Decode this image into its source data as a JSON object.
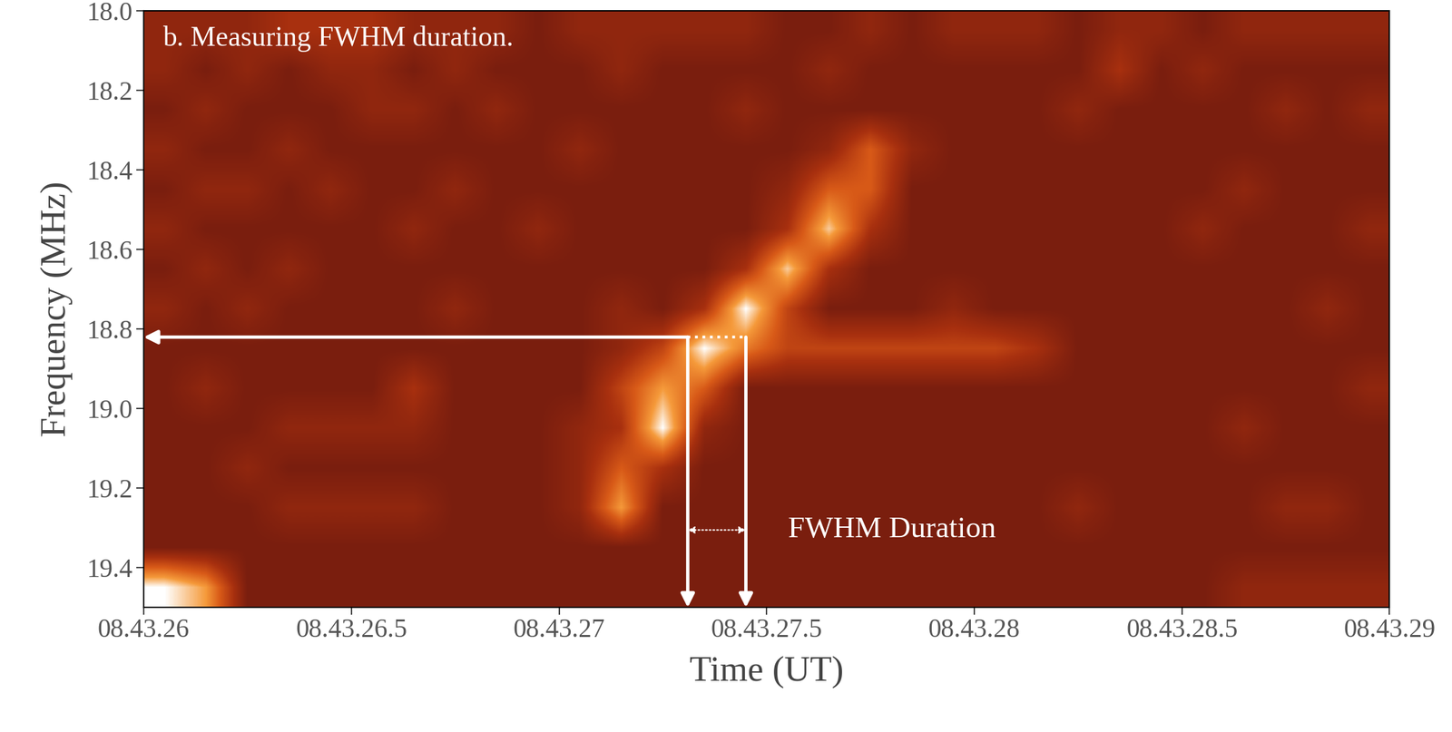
{
  "chart_data": {
    "type": "heatmap",
    "title": "b. Measuring FWHM duration.",
    "x_label": "Time (UT)",
    "y_label": "Frequency (MHz)",
    "xlim": [
      26.0,
      29.0
    ],
    "ylim": [
      19.5,
      18.0
    ],
    "xticks": [
      {
        "value": 26.0,
        "label": "08.43.26"
      },
      {
        "value": 26.5,
        "label": "08.43.26.5"
      },
      {
        "value": 27.0,
        "label": "08.43.27"
      },
      {
        "value": 27.5,
        "label": "08.43.27.5"
      },
      {
        "value": 28.0,
        "label": "08.43.28"
      },
      {
        "value": 28.5,
        "label": "08.43.28.5"
      },
      {
        "value": 29.0,
        "label": "08.43.29"
      }
    ],
    "yticks": [
      18.0,
      18.2,
      18.4,
      18.6,
      18.8,
      19.0,
      19.2,
      19.4
    ],
    "cell_range": [
      0,
      10
    ],
    "cells": [
      [
        3,
        3,
        3,
        4,
        4,
        4,
        3,
        3,
        3,
        2,
        3,
        3,
        3,
        3,
        3,
        2,
        2,
        3,
        2,
        3,
        3,
        3,
        2,
        3,
        3,
        2,
        3,
        3,
        3,
        3
      ],
      [
        3,
        2,
        3,
        2,
        3,
        3,
        2,
        3,
        2,
        2,
        2,
        3,
        2,
        2,
        2,
        2,
        3,
        2,
        2,
        2,
        2,
        2,
        2,
        4,
        2,
        3,
        2,
        2,
        2,
        2
      ],
      [
        2,
        3,
        2,
        2,
        2,
        3,
        3,
        2,
        3,
        2,
        2,
        2,
        2,
        2,
        3,
        2,
        2,
        2,
        2,
        2,
        2,
        2,
        3,
        2,
        2,
        2,
        2,
        3,
        2,
        3
      ],
      [
        3,
        2,
        2,
        3,
        2,
        2,
        2,
        2,
        2,
        2,
        3,
        2,
        2,
        2,
        2,
        2,
        3,
        6,
        3,
        2,
        2,
        2,
        2,
        2,
        2,
        2,
        2,
        2,
        2,
        2
      ],
      [
        2,
        3,
        3,
        2,
        3,
        2,
        2,
        3,
        2,
        2,
        2,
        2,
        2,
        2,
        2,
        3,
        6,
        6,
        2,
        2,
        2,
        2,
        2,
        2,
        2,
        2,
        3,
        2,
        2,
        2
      ],
      [
        3,
        2,
        2,
        2,
        2,
        2,
        3,
        2,
        2,
        3,
        2,
        2,
        2,
        2,
        2,
        4,
        9,
        4,
        2,
        2,
        2,
        2,
        2,
        2,
        2,
        3,
        2,
        2,
        2,
        3
      ],
      [
        2,
        3,
        2,
        3,
        2,
        2,
        2,
        2,
        2,
        2,
        2,
        2,
        2,
        2,
        4,
        9,
        4,
        2,
        2,
        2,
        2,
        2,
        2,
        2,
        2,
        2,
        2,
        2,
        2,
        2
      ],
      [
        3,
        2,
        3,
        2,
        2,
        2,
        2,
        3,
        2,
        2,
        2,
        3,
        2,
        4,
        10,
        5,
        2,
        2,
        2,
        3,
        2,
        2,
        2,
        2,
        2,
        2,
        2,
        2,
        3,
        2
      ],
      [
        2,
        2,
        2,
        2,
        2,
        2,
        2,
        2,
        2,
        2,
        2,
        3,
        5,
        10,
        7,
        5,
        5,
        5,
        5,
        5,
        5,
        4,
        2,
        2,
        2,
        2,
        2,
        2,
        2,
        2
      ],
      [
        2,
        3,
        2,
        2,
        2,
        2,
        4,
        2,
        2,
        2,
        2,
        5,
        8,
        6,
        2,
        2,
        2,
        2,
        2,
        2,
        2,
        2,
        2,
        2,
        2,
        2,
        2,
        2,
        2,
        3
      ],
      [
        2,
        2,
        2,
        3,
        3,
        3,
        3,
        2,
        2,
        2,
        3,
        4,
        10,
        3,
        2,
        2,
        2,
        2,
        2,
        2,
        2,
        2,
        2,
        2,
        2,
        2,
        3,
        2,
        2,
        2
      ],
      [
        2,
        2,
        3,
        2,
        2,
        2,
        2,
        2,
        2,
        2,
        3,
        6,
        4,
        2,
        2,
        2,
        2,
        2,
        2,
        2,
        2,
        2,
        2,
        2,
        2,
        2,
        2,
        2,
        2,
        2
      ],
      [
        2,
        2,
        2,
        3,
        3,
        3,
        3,
        2,
        2,
        2,
        3,
        8,
        2,
        2,
        2,
        2,
        2,
        2,
        2,
        2,
        2,
        2,
        3,
        2,
        2,
        2,
        2,
        3,
        3,
        2
      ],
      [
        2,
        2,
        2,
        2,
        2,
        2,
        2,
        2,
        2,
        2,
        2,
        2,
        2,
        2,
        2,
        2,
        2,
        2,
        2,
        2,
        2,
        2,
        2,
        2,
        2,
        2,
        2,
        2,
        2,
        2
      ],
      [
        10,
        8,
        2,
        2,
        2,
        2,
        2,
        2,
        2,
        2,
        2,
        2,
        2,
        2,
        2,
        2,
        2,
        2,
        2,
        2,
        2,
        2,
        2,
        2,
        2,
        2,
        3,
        3,
        3,
        3
      ]
    ],
    "fwhm": {
      "start": 27.31,
      "end": 27.45,
      "frequency": 18.82,
      "label": "FWHM Duration"
    },
    "grid": false
  }
}
